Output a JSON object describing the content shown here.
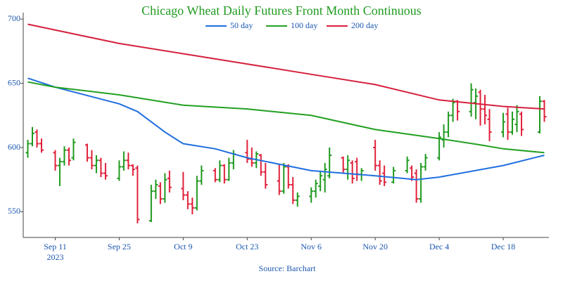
{
  "chart_data": {
    "type": "ohlc",
    "title": "Chicago Wheat Daily Futures Front Month Continuous",
    "source": "Source: Barchart",
    "x": [
      "2023-09-05",
      "2023-09-06",
      "2023-09-07",
      "2023-09-08",
      "2023-09-11",
      "2023-09-12",
      "2023-09-13",
      "2023-09-14",
      "2023-09-15",
      "2023-09-18",
      "2023-09-19",
      "2023-09-20",
      "2023-09-21",
      "2023-09-22",
      "2023-09-25",
      "2023-09-26",
      "2023-09-27",
      "2023-09-28",
      "2023-09-29",
      "2023-10-02",
      "2023-10-03",
      "2023-10-04",
      "2023-10-05",
      "2023-10-06",
      "2023-10-09",
      "2023-10-10",
      "2023-10-11",
      "2023-10-12",
      "2023-10-13",
      "2023-10-16",
      "2023-10-17",
      "2023-10-18",
      "2023-10-19",
      "2023-10-20",
      "2023-10-23",
      "2023-10-24",
      "2023-10-25",
      "2023-10-26",
      "2023-10-27",
      "2023-10-30",
      "2023-10-31",
      "2023-11-01",
      "2023-11-02",
      "2023-11-03",
      "2023-11-06",
      "2023-11-07",
      "2023-11-08",
      "2023-11-09",
      "2023-11-10",
      "2023-11-13",
      "2023-11-14",
      "2023-11-15",
      "2023-11-16",
      "2023-11-17",
      "2023-11-20",
      "2023-11-21",
      "2023-11-22",
      "2023-11-24",
      "2023-11-27",
      "2023-11-28",
      "2023-11-29",
      "2023-11-30",
      "2023-12-01",
      "2023-12-04",
      "2023-12-05",
      "2023-12-06",
      "2023-12-07",
      "2023-12-08",
      "2023-12-11",
      "2023-12-12",
      "2023-12-13",
      "2023-12-14",
      "2023-12-15",
      "2023-12-18",
      "2023-12-19",
      "2023-12-20",
      "2023-12-21",
      "2023-12-22",
      "2023-12-26",
      "2023-12-27"
    ],
    "open": [
      596,
      603,
      612,
      603,
      596,
      586,
      589,
      598,
      592,
      602,
      592,
      586,
      590,
      580,
      576,
      585,
      590,
      586,
      584,
      543,
      566,
      570,
      560,
      576,
      568,
      563,
      556,
      553,
      574,
      582,
      575,
      586,
      575,
      588,
      596,
      591,
      588,
      594,
      581,
      574,
      566,
      585,
      571,
      559,
      562,
      566,
      570,
      575,
      578,
      592,
      583,
      588,
      589,
      579,
      600,
      586,
      580,
      573,
      582,
      584,
      580,
      560,
      585,
      592,
      606,
      612,
      625,
      636,
      628,
      635,
      643,
      630,
      622,
      612,
      626,
      612,
      618,
      626,
      612,
      636
    ],
    "high": [
      606,
      616,
      614,
      607,
      598,
      592,
      601,
      600,
      607,
      603,
      598,
      594,
      592,
      588,
      590,
      597,
      596,
      587,
      586,
      571,
      575,
      573,
      580,
      582,
      581,
      566,
      561,
      578,
      586,
      584,
      590,
      587,
      592,
      598,
      606,
      600,
      597,
      595,
      588,
      587,
      588,
      587,
      577,
      565,
      569,
      575,
      582,
      588,
      600,
      593,
      594,
      590,
      592,
      584,
      606,
      590,
      586,
      585,
      593,
      586,
      583,
      588,
      595,
      612,
      618,
      628,
      638,
      637,
      650,
      646,
      645,
      641,
      630,
      627,
      631,
      628,
      633,
      628,
      640,
      637
    ],
    "low": [
      592,
      601,
      600,
      596,
      582,
      570,
      586,
      586,
      590,
      589,
      583,
      580,
      577,
      575,
      574,
      582,
      583,
      578,
      541,
      542,
      560,
      556,
      557,
      565,
      559,
      552,
      548,
      551,
      571,
      573,
      573,
      572,
      574,
      583,
      588,
      585,
      584,
      578,
      568,
      563,
      564,
      568,
      556,
      554,
      557,
      561,
      566,
      565,
      576,
      580,
      575,
      572,
      574,
      574,
      582,
      571,
      570,
      572,
      580,
      574,
      557,
      557,
      582,
      590,
      600,
      608,
      620,
      621,
      624,
      622,
      617,
      618,
      605,
      608,
      606,
      610,
      612,
      609,
      611,
      620
    ],
    "close": [
      603,
      611,
      603,
      598,
      586,
      589,
      598,
      590,
      604,
      592,
      586,
      590,
      580,
      578,
      585,
      590,
      586,
      583,
      544,
      566,
      571,
      560,
      575,
      569,
      563,
      556,
      553,
      574,
      582,
      575,
      586,
      575,
      588,
      595,
      591,
      588,
      595,
      581,
      571,
      566,
      585,
      571,
      559,
      562,
      566,
      572,
      578,
      583,
      594,
      583,
      590,
      576,
      579,
      582,
      586,
      574,
      573,
      582,
      590,
      577,
      560,
      585,
      592,
      608,
      612,
      625,
      635,
      628,
      645,
      640,
      630,
      625,
      612,
      620,
      612,
      622,
      628,
      614,
      636,
      624
    ],
    "up_color": "#1f9a1f",
    "down_color": "#e0213a",
    "series": [
      {
        "name": "50 day",
        "color": "#1f6fe0",
        "x": [
          "2023-09-05",
          "2023-09-11",
          "2023-09-25",
          "2023-09-29",
          "2023-10-05",
          "2023-10-09",
          "2023-10-16",
          "2023-10-23",
          "2023-11-06",
          "2023-11-20",
          "2023-11-29",
          "2023-12-04",
          "2023-12-18",
          "2023-12-27"
        ],
        "values": [
          654,
          647,
          634,
          628,
          612,
          603,
          599,
          592,
          582,
          578,
          575,
          577,
          586,
          594
        ]
      },
      {
        "name": "100 day",
        "color": "#22a022",
        "x": [
          "2023-09-05",
          "2023-09-11",
          "2023-09-25",
          "2023-10-09",
          "2023-10-23",
          "2023-11-06",
          "2023-11-20",
          "2023-12-04",
          "2023-12-13",
          "2023-12-18",
          "2023-12-27"
        ],
        "values": [
          651,
          647,
          641,
          633,
          630,
          625,
          614,
          607,
          602,
          599,
          596
        ]
      },
      {
        "name": "200 day",
        "color": "#d6203d",
        "x": [
          "2023-09-05",
          "2023-09-25",
          "2023-10-09",
          "2023-10-23",
          "2023-11-06",
          "2023-11-20",
          "2023-12-04",
          "2023-12-18",
          "2023-12-27"
        ],
        "values": [
          696,
          681,
          673,
          665,
          657,
          649,
          637,
          632,
          630
        ]
      }
    ],
    "xlim": [
      "2023-09-04",
      "2023-12-28"
    ],
    "xticks": [
      {
        "value": "2023-09-11",
        "label": "Sep 11",
        "year": "2023"
      },
      {
        "value": "2023-09-25",
        "label": "Sep 25"
      },
      {
        "value": "2023-10-09",
        "label": "Oct 9"
      },
      {
        "value": "2023-10-23",
        "label": "Oct 23"
      },
      {
        "value": "2023-11-06",
        "label": "Nov 6"
      },
      {
        "value": "2023-11-20",
        "label": "Nov 20"
      },
      {
        "value": "2023-12-04",
        "label": "Dec 4"
      },
      {
        "value": "2023-12-18",
        "label": "Dec 18"
      }
    ],
    "ylim": [
      530,
      705
    ],
    "yticks": [
      550,
      600,
      650,
      700
    ],
    "grid": false
  }
}
